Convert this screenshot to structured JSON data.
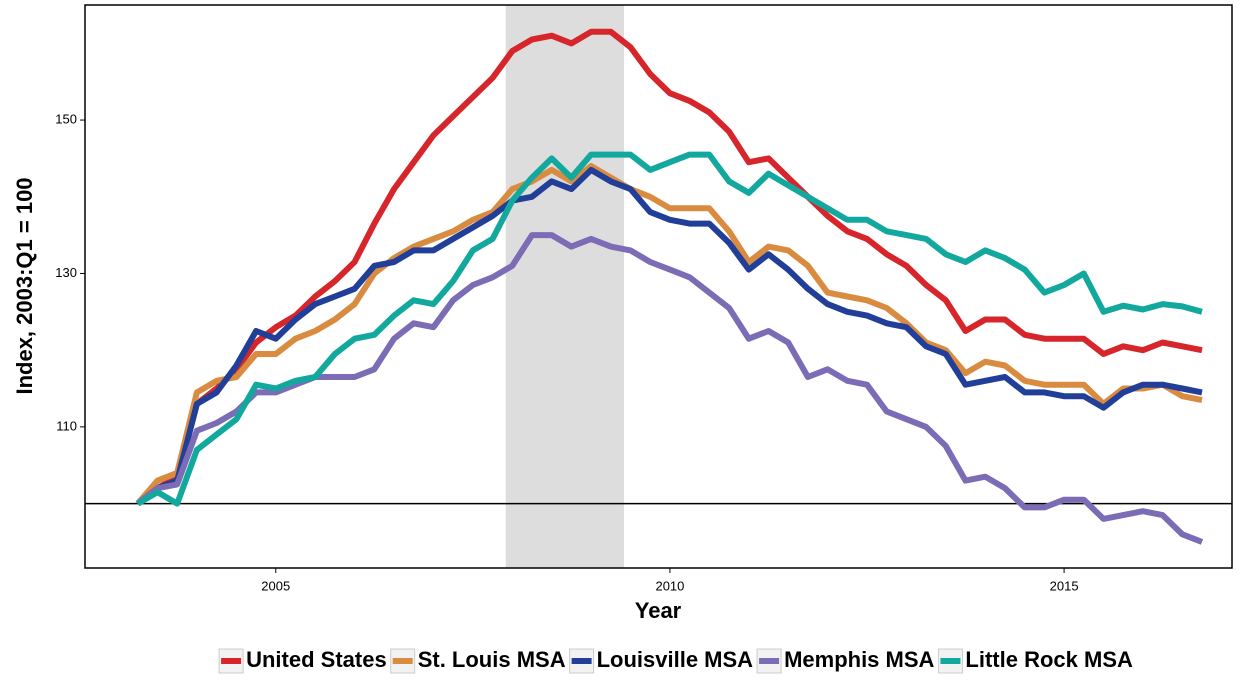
{
  "chart_data": {
    "type": "line",
    "x_label": "Year",
    "y_label": "Index, 2003:Q1 = 100",
    "xlim": [
      2002.58,
      2017.13
    ],
    "ylim": [
      91.6,
      165
    ],
    "xticks": [
      2005,
      2010,
      2015
    ],
    "yticks": [
      110,
      130,
      150
    ],
    "hline": 100,
    "shade": [
      2007.917,
      2009.417
    ],
    "shade_color": "#dddddd",
    "grid": false,
    "legend": "bottom",
    "x": [
      2003.25,
      2003.5,
      2003.75,
      2004,
      2004.25,
      2004.5,
      2004.75,
      2005,
      2005.25,
      2005.5,
      2005.75,
      2006,
      2006.25,
      2006.5,
      2006.75,
      2007,
      2007.25,
      2007.5,
      2007.75,
      2008,
      2008.25,
      2008.5,
      2008.75,
      2009,
      2009.25,
      2009.5,
      2009.75,
      2010,
      2010.25,
      2010.5,
      2010.75,
      2011,
      2011.25,
      2011.5,
      2011.75,
      2012,
      2012.25,
      2012.5,
      2012.75,
      2013,
      2013.25,
      2013.5,
      2013.75,
      2014,
      2014.25,
      2014.5,
      2014.75,
      2015,
      2015.25,
      2015.5,
      2015.75,
      2016,
      2016.25,
      2016.5,
      2016.75
    ],
    "series": [
      {
        "name": "United States",
        "color": "#d7262b",
        "values": [
          100,
          102,
          103.5,
          113,
          115,
          117.5,
          121,
          123,
          124.5,
          127,
          129,
          131.5,
          136.5,
          141,
          144.5,
          148,
          150.5,
          153,
          155.5,
          159,
          160.5,
          161,
          160,
          161.5,
          161.5,
          159.5,
          156,
          153.5,
          152.5,
          151,
          148.5,
          144.5,
          145,
          142.5,
          140,
          137.5,
          135.5,
          134.5,
          132.5,
          131,
          128.5,
          126.5,
          122.5,
          124,
          124,
          122,
          121.5,
          121.5,
          121.5,
          119.5,
          120.5,
          120,
          121,
          120.5,
          120
        ]
      },
      {
        "name": "St. Louis MSA",
        "color": "#d98c3f",
        "values": [
          100,
          103,
          104,
          114.5,
          116,
          116.5,
          119.5,
          119.5,
          121.5,
          122.5,
          124,
          126,
          130,
          132,
          133.5,
          134.5,
          135.5,
          137,
          138,
          141,
          142,
          143.5,
          142,
          144,
          142.5,
          141,
          140,
          138.5,
          138.5,
          138.5,
          135.5,
          131.5,
          133.5,
          133,
          131,
          127.5,
          127,
          126.5,
          125.5,
          123.5,
          121,
          120,
          117,
          118.5,
          118,
          116,
          115.5,
          115.5,
          115.5,
          113,
          115,
          115,
          115.5,
          114,
          113.5
        ]
      },
      {
        "name": "Louisville MSA",
        "color": "#213f99",
        "values": [
          100,
          102,
          103,
          113,
          114.5,
          118,
          122.5,
          121.5,
          124,
          126,
          127,
          128,
          131,
          131.5,
          133,
          133,
          134.5,
          136,
          137.5,
          139.5,
          140,
          142,
          141,
          143.5,
          142,
          141,
          138,
          137,
          136.5,
          136.5,
          134,
          130.5,
          132.5,
          130.5,
          128,
          126,
          125,
          124.5,
          123.5,
          123,
          120.5,
          119.5,
          115.5,
          116,
          116.5,
          114.5,
          114.5,
          114,
          114,
          112.5,
          114.5,
          115.5,
          115.5,
          115,
          114.5
        ]
      },
      {
        "name": "Memphis MSA",
        "color": "#7b6cb5",
        "values": [
          100,
          102,
          102.5,
          109.5,
          110.5,
          112,
          114.5,
          114.5,
          115.5,
          116.5,
          116.5,
          116.5,
          117.5,
          121.5,
          123.5,
          123,
          126.5,
          128.5,
          129.5,
          131,
          135,
          135,
          133.5,
          134.5,
          133.5,
          133,
          131.5,
          130.5,
          129.5,
          127.5,
          125.5,
          121.5,
          122.5,
          121,
          116.5,
          117.5,
          116,
          115.5,
          112,
          111,
          110,
          107.5,
          103,
          103.5,
          102,
          99.5,
          99.5,
          100.5,
          100.5,
          98,
          98.5,
          99,
          98.5,
          96,
          95
        ]
      },
      {
        "name": "Little Rock MSA",
        "color": "#13a89e",
        "values": [
          100,
          101.5,
          100,
          107,
          109,
          111,
          115.5,
          115,
          116,
          116.5,
          119.5,
          121.5,
          122,
          124.5,
          126.5,
          126,
          129,
          133,
          134.5,
          139.5,
          142.5,
          145,
          142.5,
          145.5,
          145.5,
          145.5,
          143.5,
          144.5,
          145.5,
          145.5,
          142,
          140.5,
          143,
          141.5,
          140,
          138.5,
          137,
          137,
          135.5,
          135,
          134.5,
          132.5,
          131.5,
          133,
          132,
          130.5,
          127.5,
          128.5,
          130,
          125,
          125.8,
          125.3,
          126,
          125.7,
          125
        ]
      }
    ]
  }
}
